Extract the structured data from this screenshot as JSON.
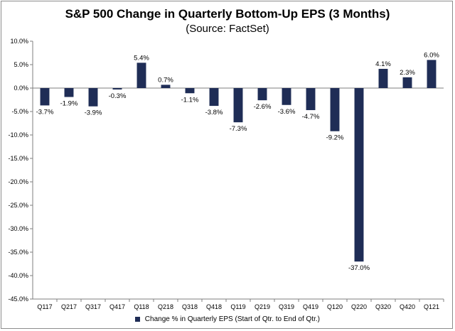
{
  "chart_data": {
    "type": "bar",
    "title": "S&P 500 Change in Quarterly Bottom-Up EPS (3 Months)",
    "subtitle": "(Source: FactSet)",
    "categories": [
      "Q117",
      "Q217",
      "Q317",
      "Q417",
      "Q118",
      "Q218",
      "Q318",
      "Q418",
      "Q119",
      "Q219",
      "Q319",
      "Q419",
      "Q120",
      "Q220",
      "Q320",
      "Q420",
      "Q121"
    ],
    "series": [
      {
        "name": "Change % in Quarterly EPS (Start of Qtr. to End of Qtr.)",
        "color": "#1f2d56",
        "values": [
          -3.7,
          -1.9,
          -3.9,
          -0.3,
          5.4,
          0.7,
          -1.1,
          -3.8,
          -7.3,
          -2.6,
          -3.6,
          -4.7,
          -9.2,
          -37.0,
          4.1,
          2.3,
          6.0
        ],
        "labels": [
          "-3.7%",
          "-1.9%",
          "-3.9%",
          "-0.3%",
          "5.4%",
          "0.7%",
          "-1.1%",
          "-3.8%",
          "-7.3%",
          "-2.6%",
          "-3.6%",
          "-4.7%",
          "-9.2%",
          "-37.0%",
          "4.1%",
          "2.3%",
          "6.0%"
        ]
      }
    ],
    "ylim": [
      -45,
      10
    ],
    "yticks": [
      10,
      5,
      0,
      -5,
      -10,
      -15,
      -20,
      -25,
      -30,
      -35,
      -40,
      -45
    ],
    "ytick_labels": [
      "10.0%",
      "5.0%",
      "0.0%",
      "-5.0%",
      "-10.0%",
      "-15.0%",
      "-20.0%",
      "-25.0%",
      "-30.0%",
      "-35.0%",
      "-40.0%",
      "-45.0%"
    ],
    "grid": false,
    "legend_position": "bottom"
  }
}
